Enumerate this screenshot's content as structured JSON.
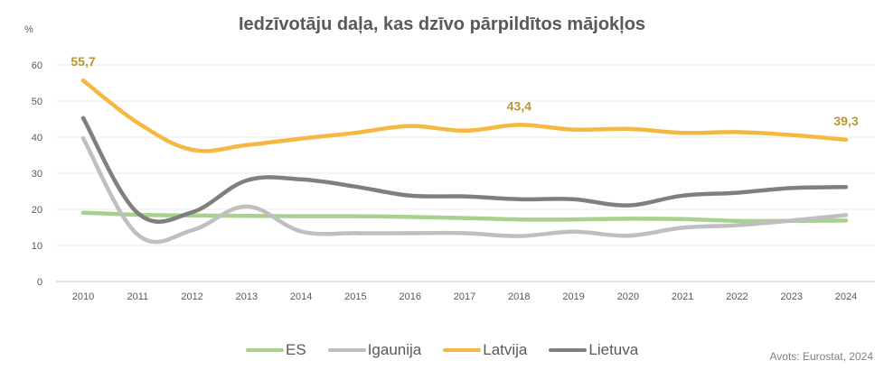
{
  "chart_data": {
    "type": "line",
    "title": "Iedzīvotāju daļa, kas dzīvo pārpildītos mājokļos",
    "ylabel": "%",
    "xlabel": "",
    "ylim": [
      0,
      60
    ],
    "yticks": [
      "0",
      "10",
      "20",
      "30",
      "40",
      "50",
      "60"
    ],
    "ytick_values": [
      0,
      10,
      20,
      30,
      40,
      50,
      60
    ],
    "grid": true,
    "categories": [
      "2010",
      "2011",
      "2012",
      "2013",
      "2014",
      "2015",
      "2016",
      "2017",
      "2018",
      "2019",
      "2020",
      "2021",
      "2022",
      "2023",
      "2024"
    ],
    "series": [
      {
        "name": "ES",
        "color": "#a9d18e",
        "values": [
          19.1,
          18.5,
          18.3,
          18.2,
          18.1,
          18.1,
          17.9,
          17.6,
          17.2,
          17.2,
          17.4,
          17.3,
          16.8,
          16.8,
          16.9
        ]
      },
      {
        "name": "Igaunija",
        "color": "#bfbfbf",
        "values": [
          39.7,
          13.0,
          14.2,
          20.8,
          13.9,
          13.4,
          13.4,
          13.4,
          12.6,
          13.8,
          12.7,
          14.9,
          15.6,
          16.9,
          18.4
        ]
      },
      {
        "name": "Latvija",
        "color": "#f4b942",
        "values": [
          55.7,
          44.0,
          36.5,
          37.8,
          39.6,
          41.2,
          43.1,
          41.8,
          43.4,
          42.1,
          42.3,
          41.2,
          41.4,
          40.6,
          39.3
        ]
      },
      {
        "name": "Lietuva",
        "color": "#7f7f7f",
        "values": [
          45.3,
          19.0,
          19.2,
          28.0,
          28.3,
          26.3,
          23.8,
          23.6,
          22.8,
          22.8,
          21.1,
          23.8,
          24.6,
          25.9,
          26.2
        ]
      }
    ],
    "annotations": [
      {
        "series": "Latvija",
        "category": "2010",
        "text": "55,7"
      },
      {
        "series": "Latvija",
        "category": "2018",
        "text": "43,4"
      },
      {
        "series": "Latvija",
        "category": "2024",
        "text": "39,3"
      }
    ],
    "annotation_color": "#b8962e",
    "legend_position": "bottom",
    "source": "Avots: Eurostat, 2024"
  }
}
